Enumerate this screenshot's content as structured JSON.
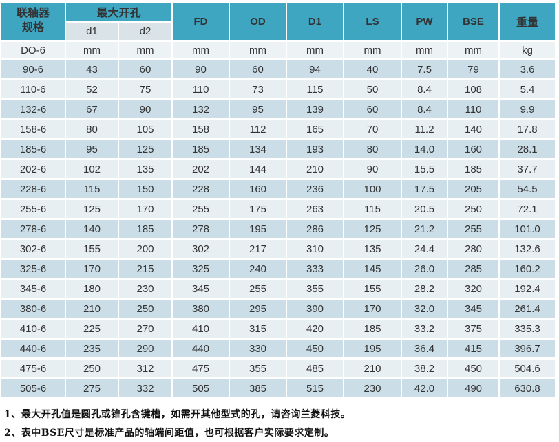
{
  "title_column": {
    "line1": "联轴器",
    "line2": "规格"
  },
  "header": {
    "max_bore_group": "最大开孔",
    "sub_columns": [
      "d1",
      "d2"
    ],
    "columns": [
      "FD",
      "OD",
      "D1",
      "LS",
      "PW",
      "BSE",
      "重量"
    ]
  },
  "units_row": [
    "DO-6",
    "mm",
    "mm",
    "mm",
    "mm",
    "mm",
    "mm",
    "mm",
    "mm",
    "kg"
  ],
  "rows": [
    [
      "90-6",
      "43",
      "60",
      "90",
      "60",
      "94",
      "40",
      "7.5",
      "79",
      "3.6"
    ],
    [
      "110-6",
      "52",
      "75",
      "110",
      "73",
      "115",
      "50",
      "8.4",
      "108",
      "5.4"
    ],
    [
      "132-6",
      "67",
      "90",
      "132",
      "95",
      "139",
      "60",
      "8.4",
      "110",
      "9.9"
    ],
    [
      "158-6",
      "80",
      "105",
      "158",
      "112",
      "165",
      "70",
      "11.2",
      "140",
      "17.8"
    ],
    [
      "185-6",
      "95",
      "125",
      "185",
      "134",
      "193",
      "80",
      "14.0",
      "160",
      "28.1"
    ],
    [
      "202-6",
      "102",
      "135",
      "202",
      "144",
      "210",
      "90",
      "15.5",
      "185",
      "37.7"
    ],
    [
      "228-6",
      "115",
      "150",
      "228",
      "160",
      "236",
      "100",
      "17.5",
      "205",
      "54.5"
    ],
    [
      "255-6",
      "125",
      "170",
      "255",
      "175",
      "263",
      "115",
      "20.5",
      "250",
      "72.1"
    ],
    [
      "278-6",
      "140",
      "185",
      "278",
      "195",
      "286",
      "125",
      "21.2",
      "255",
      "101.0"
    ],
    [
      "302-6",
      "155",
      "200",
      "302",
      "217",
      "310",
      "135",
      "24.4",
      "280",
      "132.6"
    ],
    [
      "325-6",
      "170",
      "215",
      "325",
      "240",
      "333",
      "145",
      "26.0",
      "285",
      "160.2"
    ],
    [
      "345-6",
      "180",
      "230",
      "345",
      "255",
      "355",
      "155",
      "28.2",
      "320",
      "192.4"
    ],
    [
      "380-6",
      "210",
      "250",
      "380",
      "295",
      "390",
      "170",
      "32.0",
      "345",
      "261.4"
    ],
    [
      "410-6",
      "225",
      "270",
      "410",
      "315",
      "420",
      "185",
      "33.2",
      "375",
      "335.3"
    ],
    [
      "440-6",
      "235",
      "290",
      "440",
      "330",
      "450",
      "195",
      "36.4",
      "415",
      "396.7"
    ],
    [
      "475-6",
      "250",
      "312",
      "475",
      "355",
      "485",
      "210",
      "38.2",
      "450",
      "504.6"
    ],
    [
      "505-6",
      "275",
      "332",
      "505",
      "385",
      "515",
      "230",
      "42.0",
      "490",
      "630.8"
    ]
  ],
  "notes": [
    "1、最大开孔值是圆孔或锥孔含键槽，如需开其他型式的孔，请咨询兰菱科技。",
    "2、表中BSE尺寸是标准产品的轴端间距值，也可根据客户实际要求定制。"
  ],
  "colors": {
    "header_bg": "#3EA6C1",
    "header_text": "#FFFFFF",
    "subheader_bg": "#D9E3E8",
    "units_row_bg": "#EDF2F5",
    "row_dark_bg": "#CBDEE8",
    "row_light_bg": "#E8EFF3",
    "cell_text": "#333333",
    "note_text": "#111111"
  }
}
